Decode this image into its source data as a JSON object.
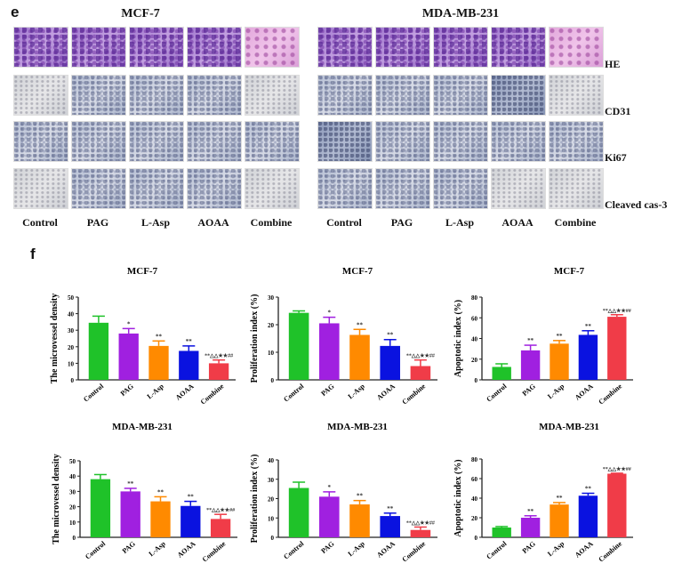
{
  "panel_e": {
    "label": "e",
    "groups": [
      {
        "title": "MCF-7"
      },
      {
        "title": "MDA-MB-231"
      }
    ],
    "row_labels": [
      "HE",
      "CD31",
      "Ki67",
      "Cleaved cas-3"
    ],
    "column_labels": [
      "Control",
      "PAG",
      "L-Asp",
      "AOAA",
      "Combine"
    ]
  },
  "panel_f": {
    "label": "f"
  },
  "colors": {
    "Control": "#1fc229",
    "PAG": "#a020e0",
    "L-Asp": "#ff8a00",
    "AOAA": "#0a12e0",
    "Combine": "#f03c48"
  },
  "chart_data": [
    {
      "type": "bar",
      "title": "MCF-7",
      "ylabel": "The microvessel density",
      "categories": [
        "Control",
        "PAG",
        "L-Asp",
        "AOAA",
        "Combine"
      ],
      "values": [
        34.5,
        28,
        20.5,
        17.5,
        10
      ],
      "errors": [
        4,
        3,
        3,
        3,
        2
      ],
      "annotations": [
        "",
        "*",
        "**",
        "**",
        "**△△★★##"
      ],
      "ylim": [
        0,
        50
      ],
      "yticks": [
        0,
        10,
        20,
        30,
        40,
        50
      ]
    },
    {
      "type": "bar",
      "title": "MCF-7",
      "ylabel": "Proliferation index (%)",
      "categories": [
        "Control",
        "PAG",
        "L-Asp",
        "AOAA",
        "Combine"
      ],
      "values": [
        24.3,
        20.5,
        16.3,
        12.3,
        5
      ],
      "errors": [
        0.7,
        2.2,
        2,
        2.3,
        2.2
      ],
      "annotations": [
        "",
        "*",
        "**",
        "**",
        "**△△★★##"
      ],
      "ylim": [
        0,
        30
      ],
      "yticks": [
        0,
        10,
        20,
        30
      ]
    },
    {
      "type": "bar",
      "title": "MCF-7",
      "ylabel": "Apoptotic index (%)",
      "categories": [
        "Control",
        "PAG",
        "L-Asp",
        "AOAA",
        "Combine"
      ],
      "values": [
        12.5,
        28.5,
        35,
        43.5,
        61
      ],
      "errors": [
        3,
        5,
        3,
        4,
        2
      ],
      "annotations": [
        "",
        "**",
        "**",
        "**",
        "**△△★★##"
      ],
      "ylim": [
        0,
        80
      ],
      "yticks": [
        0,
        20,
        40,
        60,
        80
      ]
    },
    {
      "type": "bar",
      "title": "MDA-MB-231",
      "ylabel": "The microvessel density",
      "categories": [
        "Control",
        "PAG",
        "L-Asp",
        "AOAA",
        "Combine"
      ],
      "values": [
        38,
        30,
        23.5,
        20.5,
        12
      ],
      "errors": [
        3,
        2,
        3,
        3,
        3
      ],
      "annotations": [
        "",
        "**",
        "**",
        "**",
        "**△△★★##"
      ],
      "ylim": [
        0,
        50
      ],
      "yticks": [
        0,
        10,
        20,
        30,
        40,
        50
      ]
    },
    {
      "type": "bar",
      "title": "MDA-MB-231",
      "ylabel": "Proliferation index (%)",
      "categories": [
        "Control",
        "PAG",
        "L-Asp",
        "AOAA",
        "Combine"
      ],
      "values": [
        25.5,
        21,
        17,
        11,
        3.8
      ],
      "errors": [
        3,
        2.5,
        2,
        1.5,
        1.5
      ],
      "annotations": [
        "",
        "*",
        "**",
        "**",
        "**△△★★##"
      ],
      "ylim": [
        0,
        40
      ],
      "yticks": [
        0,
        10,
        20,
        30,
        40
      ]
    },
    {
      "type": "bar",
      "title": "MDA-MB-231",
      "ylabel": "Apoptotic index (%)",
      "categories": [
        "Control",
        "PAG",
        "L-Asp",
        "AOAA",
        "Combine"
      ],
      "values": [
        10,
        20,
        33.5,
        42.5,
        65
      ],
      "errors": [
        1,
        2,
        2,
        2.5,
        0.5
      ],
      "annotations": [
        "",
        "**",
        "**",
        "**",
        "**△△★★##"
      ],
      "ylim": [
        0,
        80
      ],
      "yticks": [
        0,
        20,
        40,
        60,
        80
      ]
    }
  ]
}
